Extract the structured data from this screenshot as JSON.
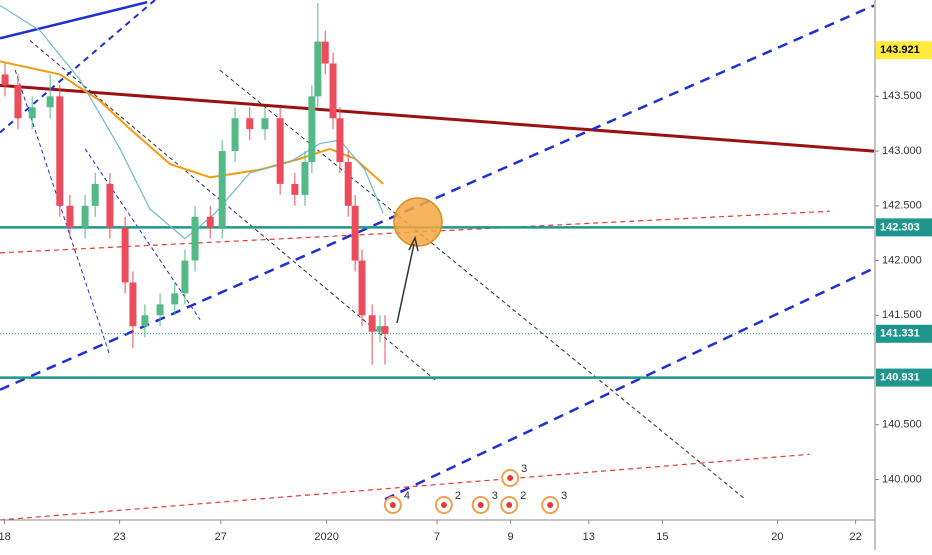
{
  "chart_data": {
    "type": "candlestick",
    "xlim": [
      0,
      190
    ],
    "ylim": [
      139.63,
      144.38
    ],
    "xticks": [
      {
        "value": 1,
        "label": "18"
      },
      {
        "value": 26,
        "label": "23"
      },
      {
        "value": 48,
        "label": "27"
      },
      {
        "value": 71,
        "label": "2020"
      },
      {
        "value": 95,
        "label": "7"
      },
      {
        "value": 111,
        "label": "9"
      },
      {
        "value": 128,
        "label": "13"
      },
      {
        "value": 144,
        "label": "15"
      },
      {
        "value": 169,
        "label": "20"
      },
      {
        "value": 186,
        "label": "22"
      }
    ],
    "yticks": [
      {
        "value": 140,
        "label": "140.000"
      },
      {
        "value": 140.5,
        "label": "140.500"
      },
      {
        "value": 141.5,
        "label": "141.500"
      },
      {
        "value": 142,
        "label": "142.000"
      },
      {
        "value": 142.5,
        "label": "142.500"
      },
      {
        "value": 143,
        "label": "143.000"
      },
      {
        "value": 143.5,
        "label": "143.500"
      }
    ],
    "up_color": "#53b987",
    "down_color": "#eb4d5c",
    "candles": {
      "x": [
        1.1,
        3.9,
        7,
        10.9,
        13,
        15.2,
        18.5,
        20.7,
        23.9,
        27.2,
        28.9,
        31.5,
        34.8,
        38,
        40.2,
        42.4,
        45.7,
        48.3,
        51.1,
        54.3,
        57.6,
        60.9,
        64.1,
        66.3,
        67.8,
        69.1,
        70.7,
        72.4,
        73.9,
        75.7,
        77.2,
        78.7,
        80.9,
        82.6,
        83.7
      ],
      "open": [
        143.7,
        143.6,
        143.3,
        143.4,
        143.5,
        142.5,
        142.3,
        142.5,
        142.7,
        142.3,
        141.8,
        141.4,
        141.5,
        141.6,
        141.7,
        142,
        142.4,
        142.3,
        143,
        143.3,
        143.2,
        143.3,
        142.7,
        142.6,
        142.9,
        143.5,
        144,
        143.8,
        143.3,
        142.9,
        142.5,
        142,
        141.5,
        141.35,
        141.4
      ],
      "high": [
        143.8,
        143.7,
        143.5,
        143.7,
        143.6,
        142.6,
        142.6,
        142.8,
        142.8,
        142.4,
        141.9,
        141.6,
        141.7,
        141.8,
        142.1,
        142.5,
        142.5,
        143.1,
        143.4,
        143.4,
        143.4,
        143.4,
        142.8,
        143,
        143.6,
        144.35,
        144.1,
        143.9,
        143.4,
        143,
        142.6,
        142.1,
        141.6,
        141.5,
        141.5
      ],
      "low": [
        143.5,
        143.2,
        143.2,
        143.3,
        142.4,
        142.2,
        142.2,
        142.4,
        142.2,
        141.7,
        141.2,
        141.3,
        141.4,
        141.5,
        141.6,
        141.9,
        142.2,
        142.2,
        142.9,
        143.1,
        143.1,
        142.6,
        142.5,
        142.5,
        142.8,
        143.4,
        143.7,
        143.2,
        142.8,
        142.4,
        141.9,
        141.4,
        141.05,
        141.25,
        141.05
      ],
      "close": [
        143.6,
        143.3,
        143.4,
        143.5,
        142.5,
        142.3,
        142.5,
        142.7,
        142.3,
        141.8,
        141.4,
        141.5,
        141.6,
        141.7,
        142,
        142.4,
        142.3,
        143,
        143.3,
        143.2,
        143.3,
        142.7,
        142.6,
        142.9,
        143.5,
        144,
        143.8,
        143.3,
        142.9,
        142.5,
        142,
        141.5,
        141.35,
        141.4,
        141.33
      ]
    },
    "series": [
      {
        "color": "#f39c12",
        "x": [
          0,
          13,
          21.7,
          28.3,
          37,
          45.7,
          56.5,
          65.2,
          71.7,
          77.2,
          83.3
        ],
        "values": [
          143.82,
          143.7,
          143.46,
          143.2,
          142.88,
          142.76,
          142.83,
          142.93,
          143.02,
          142.93,
          142.7
        ]
      },
      {
        "color": "#6fb7d6",
        "x": [
          0,
          8.7,
          17.4,
          26.1,
          32.6,
          40.2,
          46.7,
          54.3,
          63,
          69.6,
          73.9,
          79.3,
          83.3
        ],
        "values": [
          144.33,
          144.1,
          143.65,
          143.02,
          142.47,
          142.2,
          142.43,
          142.8,
          142.9,
          143.07,
          143.1,
          142.83,
          142.43
        ]
      }
    ],
    "drawings": [
      {
        "from": [
          0,
          143.6
        ],
        "to": [
          190,
          143.0
        ],
        "color": "#9b1010",
        "width": 3,
        "dash": "none"
      },
      {
        "from": [
          0,
          144.03
        ],
        "to": [
          32,
          144.36
        ],
        "color": "#1f2fd6",
        "width": 2.5,
        "dash": "none"
      },
      {
        "from": [
          0,
          140.82
        ],
        "to": [
          190,
          144.33
        ],
        "color": "#1f2fd6",
        "width": 2.5,
        "dash": "10 7"
      },
      {
        "from": [
          0,
          143.17
        ],
        "to": [
          33.7,
          144.38
        ],
        "color": "#1f2fd6",
        "width": 2,
        "dash": "6 5"
      },
      {
        "from": [
          83.7,
          139.82
        ],
        "to": [
          190,
          141.93
        ],
        "color": "#1f2fd6",
        "width": 2.5,
        "dash": "10 7"
      },
      {
        "from": [
          3.3,
          143.74
        ],
        "to": [
          23.9,
          141.13
        ],
        "color": "#1f2fd6",
        "width": 1,
        "dash": "4 3"
      },
      {
        "from": [
          18.5,
          143.02
        ],
        "to": [
          43.5,
          141.46
        ],
        "color": "#1f2fd6",
        "width": 1,
        "dash": "4 3"
      },
      {
        "from": [
          0,
          142.07
        ],
        "to": [
          180.4,
          142.45
        ],
        "color": "#e53935",
        "width": 1.2,
        "dash": "5 4"
      },
      {
        "from": [
          0,
          139.63
        ],
        "to": [
          176,
          140.23
        ],
        "color": "#e53935",
        "width": 1.2,
        "dash": "5 4"
      },
      {
        "from": [
          47.8,
          143.74
        ],
        "to": [
          162,
          139.82
        ],
        "color": "#333333",
        "width": 1,
        "dash": "4 3"
      },
      {
        "from": [
          6.5,
          144.01
        ],
        "to": [
          94.6,
          140.91
        ],
        "color": "#333333",
        "width": 1,
        "dash": "4 3"
      }
    ],
    "levels": [
      {
        "value": 143.921,
        "label_color": "#ffeb3b",
        "text_color": "#000000"
      },
      {
        "value": 142.303,
        "label_color": "#1f968b",
        "text_color": "#ffffff",
        "line": "solid"
      },
      {
        "value": 141.331,
        "label_color": "#1f968b",
        "text_color": "#ffffff",
        "line": "dotted"
      },
      {
        "value": 140.931,
        "label_color": "#1f968b",
        "text_color": "#ffffff",
        "line": "solid"
      }
    ],
    "events": [
      {
        "x": 85.4,
        "label": "4"
      },
      {
        "x": 96.5,
        "label": "2"
      },
      {
        "x": 104.5,
        "label": "3"
      },
      {
        "x": 110.7,
        "label": "2"
      },
      {
        "x": 119.6,
        "label": "3"
      },
      {
        "x": 110.9,
        "label": "3",
        "row": "upper"
      }
    ]
  }
}
